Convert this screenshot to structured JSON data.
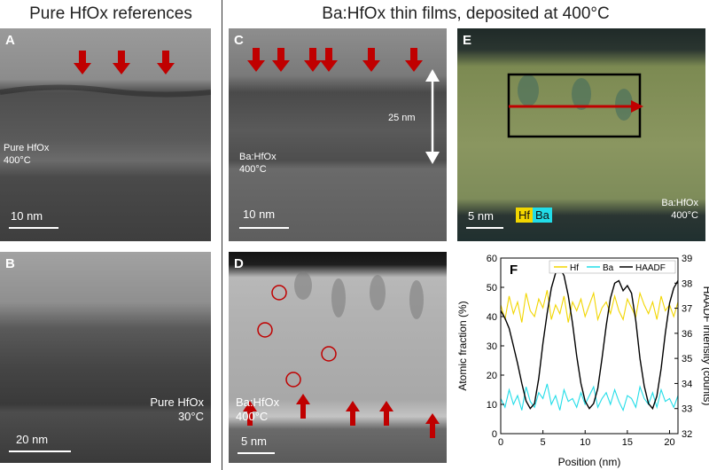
{
  "headers": {
    "left": "Pure HfOx references",
    "right": "Ba:HfOx thin films, deposited at 400°C"
  },
  "panels": {
    "A": {
      "label": "A",
      "sample": "Pure HfOx",
      "temp": "400°C",
      "scale": "10 nm"
    },
    "B": {
      "label": "B",
      "sample": "Pure HfOx",
      "temp": "30°C",
      "scale": "20 nm"
    },
    "C": {
      "label": "C",
      "sample": "Ba:HfOx",
      "temp": "400°C",
      "scale": "10 nm",
      "thickness": "25 nm"
    },
    "D": {
      "label": "D",
      "sample": "Ba:HfOx",
      "temp": "400°C",
      "scale": "5 nm"
    },
    "E": {
      "label": "E",
      "sample": "Ba:HfOx",
      "temp": "400°C",
      "scale": "5 nm",
      "map_hf": "Hf",
      "map_ba": "Ba"
    },
    "F": {
      "label": "F"
    }
  },
  "colors": {
    "arrow": "#c00000",
    "hf": "#f2d600",
    "ba": "#22dde8",
    "haadf": "#000000"
  },
  "chart_data": {
    "type": "line",
    "title": "",
    "xlabel": "Position (nm)",
    "ylabel": "Atomic fraction (%)",
    "y2label": "HAADF intensity (counts)",
    "xlim": [
      0,
      21
    ],
    "ylim": [
      0,
      60
    ],
    "y2lim": [
      32,
      39
    ],
    "xticks": [
      0,
      5,
      10,
      15,
      20
    ],
    "yticks": [
      0,
      10,
      20,
      30,
      40,
      50,
      60
    ],
    "y2ticks": [
      32,
      33,
      34,
      35,
      36,
      37,
      38,
      39
    ],
    "legend_position": "top",
    "grid": false,
    "series": [
      {
        "name": "Hf",
        "axis": "left",
        "x": [
          0,
          0.5,
          1,
          1.5,
          2,
          2.5,
          3,
          3.5,
          4,
          4.5,
          5,
          5.5,
          6,
          6.5,
          7,
          7.5,
          8,
          8.5,
          9,
          9.5,
          10,
          10.5,
          11,
          11.5,
          12,
          12.5,
          13,
          13.5,
          14,
          14.5,
          15,
          15.5,
          16,
          16.5,
          17,
          17.5,
          18,
          18.5,
          19,
          19.5,
          20,
          20.5,
          21
        ],
        "values": [
          44,
          39,
          47,
          41,
          45,
          38,
          48,
          42,
          40,
          46,
          43,
          49,
          39,
          44,
          41,
          47,
          38,
          45,
          42,
          46,
          40,
          44,
          48,
          39,
          43,
          45,
          41,
          47,
          42,
          39,
          46,
          43,
          40,
          48,
          44,
          41,
          45,
          39,
          47,
          42,
          44,
          40,
          45
        ]
      },
      {
        "name": "Ba",
        "axis": "left",
        "x": [
          0,
          0.5,
          1,
          1.5,
          2,
          2.5,
          3,
          3.5,
          4,
          4.5,
          5,
          5.5,
          6,
          6.5,
          7,
          7.5,
          8,
          8.5,
          9,
          9.5,
          10,
          10.5,
          11,
          11.5,
          12,
          12.5,
          13,
          13.5,
          14,
          14.5,
          15,
          15.5,
          16,
          16.5,
          17,
          17.5,
          18,
          18.5,
          19,
          19.5,
          20,
          20.5,
          21
        ],
        "values": [
          12,
          9,
          15,
          10,
          13,
          8,
          16,
          11,
          9,
          14,
          12,
          17,
          10,
          13,
          8,
          15,
          11,
          12,
          9,
          14,
          10,
          13,
          16,
          9,
          12,
          14,
          10,
          15,
          11,
          8,
          13,
          12,
          9,
          16,
          12,
          10,
          14,
          9,
          15,
          11,
          12,
          9,
          13
        ]
      },
      {
        "name": "HAADF",
        "axis": "right",
        "x": [
          0,
          0.5,
          1,
          1.5,
          2,
          2.5,
          3,
          3.5,
          4,
          4.5,
          5,
          5.5,
          6,
          6.5,
          7,
          7.5,
          8,
          8.5,
          9,
          9.5,
          10,
          10.5,
          11,
          11.5,
          12,
          12.5,
          13,
          13.5,
          14,
          14.5,
          15,
          15.5,
          16,
          16.5,
          17,
          17.5,
          18,
          18.5,
          19,
          19.5,
          20,
          20.5,
          21
        ],
        "values": [
          36.9,
          36.6,
          36.2,
          35.5,
          34.8,
          34.0,
          33.3,
          33.0,
          33.2,
          34.2,
          35.6,
          36.8,
          37.8,
          38.4,
          38.6,
          38.3,
          37.5,
          36.4,
          35.1,
          34.0,
          33.3,
          33.0,
          33.2,
          33.8,
          35.0,
          36.3,
          37.4,
          38.0,
          38.1,
          37.7,
          37.9,
          37.6,
          36.5,
          35.0,
          33.9,
          33.2,
          33.0,
          33.5,
          34.6,
          36.0,
          37.2,
          37.8,
          38.1
        ]
      }
    ]
  }
}
